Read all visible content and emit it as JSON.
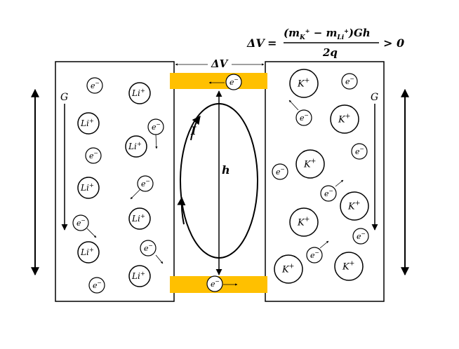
{
  "equation": {
    "lhs": "ΔV",
    "equals": "=",
    "numerator_open": "(m",
    "sub_k": "K",
    "sup_k": "+",
    "minus": " − m",
    "sub_li": "Li",
    "sup_li": "+",
    "numerator_close": ")Gh",
    "denominator": "2q",
    "inequality": "> 0"
  },
  "labels": {
    "delta_v": "ΔV",
    "g_left": "G",
    "g_right": "G",
    "current": "I",
    "height": "h"
  },
  "particles": {
    "electron_base": "e",
    "electron_sup": "−",
    "lithium_base": "Li",
    "lithium_sup": "+",
    "potassium_base": "K",
    "potassium_sup": "+"
  },
  "colors": {
    "electrode": "#FFC000",
    "stroke": "#000000"
  }
}
